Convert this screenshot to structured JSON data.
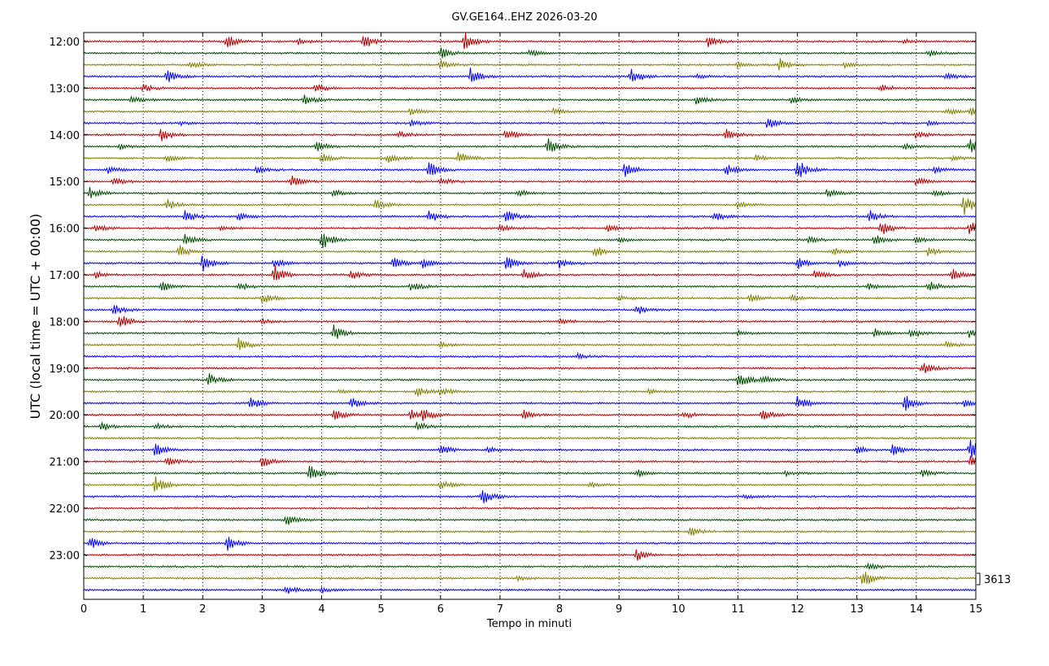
{
  "chart_data": {
    "type": "line",
    "title": "GV.GE164..EHZ 2026-03-20",
    "xlabel": "Tempo in minuti",
    "ylabel": "UTC (local time = UTC + 00:00)",
    "xlim": [
      0,
      15
    ],
    "x_ticks": [
      "0",
      "1",
      "2",
      "3",
      "4",
      "5",
      "6",
      "7",
      "8",
      "9",
      "10",
      "11",
      "12",
      "13",
      "14",
      "15"
    ],
    "y_ticks": [
      "12:00",
      "13:00",
      "14:00",
      "15:00",
      "16:00",
      "17:00",
      "18:00",
      "19:00",
      "20:00",
      "21:00",
      "22:00",
      "23:00"
    ],
    "grid_x": "dotted",
    "scale_label": "3613",
    "trace_colors": [
      "#b30000",
      "#004d00",
      "#7f7f00",
      "#0000ff"
    ],
    "trace_start": "12:00",
    "trace_interval_minutes": 15,
    "trace_count": 48,
    "events": [
      {
        "row": 0,
        "minute": 2.4,
        "amp": 0.6
      },
      {
        "row": 0,
        "minute": 3.6,
        "amp": 0.3
      },
      {
        "row": 0,
        "minute": 4.7,
        "amp": 0.7
      },
      {
        "row": 0,
        "minute": 6.4,
        "amp": 0.8
      },
      {
        "row": 0,
        "minute": 10.5,
        "amp": 0.5
      },
      {
        "row": 0,
        "minute": 13.8,
        "amp": 0.2
      },
      {
        "row": 1,
        "minute": 6.0,
        "amp": 0.5
      },
      {
        "row": 1,
        "minute": 7.5,
        "amp": 0.3
      },
      {
        "row": 1,
        "minute": 14.2,
        "amp": 0.3
      },
      {
        "row": 2,
        "minute": 1.8,
        "amp": 0.3
      },
      {
        "row": 2,
        "minute": 6.0,
        "amp": 0.4
      },
      {
        "row": 2,
        "minute": 11.0,
        "amp": 0.2
      },
      {
        "row": 2,
        "minute": 11.7,
        "amp": 0.6
      },
      {
        "row": 2,
        "minute": 12.8,
        "amp": 0.2
      },
      {
        "row": 3,
        "minute": 1.4,
        "amp": 0.6
      },
      {
        "row": 3,
        "minute": 6.5,
        "amp": 0.7
      },
      {
        "row": 3,
        "minute": 9.2,
        "amp": 0.8
      },
      {
        "row": 3,
        "minute": 10.3,
        "amp": 0.2
      },
      {
        "row": 3,
        "minute": 14.5,
        "amp": 0.3
      },
      {
        "row": 4,
        "minute": 1.0,
        "amp": 0.3
      },
      {
        "row": 4,
        "minute": 3.9,
        "amp": 0.4
      },
      {
        "row": 4,
        "minute": 13.4,
        "amp": 0.3
      },
      {
        "row": 5,
        "minute": 0.8,
        "amp": 0.3
      },
      {
        "row": 5,
        "minute": 3.7,
        "amp": 0.5
      },
      {
        "row": 5,
        "minute": 10.3,
        "amp": 0.4
      },
      {
        "row": 5,
        "minute": 11.9,
        "amp": 0.3
      },
      {
        "row": 6,
        "minute": 5.5,
        "amp": 0.3
      },
      {
        "row": 6,
        "minute": 7.9,
        "amp": 0.3
      },
      {
        "row": 6,
        "minute": 14.5,
        "amp": 0.3
      },
      {
        "row": 6,
        "minute": 14.9,
        "amp": 0.4
      },
      {
        "row": 7,
        "minute": 1.6,
        "amp": 0.2
      },
      {
        "row": 7,
        "minute": 5.5,
        "amp": 0.3
      },
      {
        "row": 7,
        "minute": 11.5,
        "amp": 0.5
      },
      {
        "row": 7,
        "minute": 14.2,
        "amp": 0.2
      },
      {
        "row": 8,
        "minute": 1.3,
        "amp": 0.6
      },
      {
        "row": 8,
        "minute": 5.3,
        "amp": 0.3
      },
      {
        "row": 8,
        "minute": 7.1,
        "amp": 0.5
      },
      {
        "row": 8,
        "minute": 10.8,
        "amp": 0.5
      },
      {
        "row": 8,
        "minute": 14.0,
        "amp": 0.3
      },
      {
        "row": 9,
        "minute": 0.6,
        "amp": 0.3
      },
      {
        "row": 9,
        "minute": 3.9,
        "amp": 0.5
      },
      {
        "row": 9,
        "minute": 7.8,
        "amp": 0.7
      },
      {
        "row": 9,
        "minute": 13.8,
        "amp": 0.3
      },
      {
        "row": 9,
        "minute": 14.9,
        "amp": 0.7
      },
      {
        "row": 10,
        "minute": 1.4,
        "amp": 0.3
      },
      {
        "row": 10,
        "minute": 4.0,
        "amp": 0.4
      },
      {
        "row": 10,
        "minute": 5.1,
        "amp": 0.5
      },
      {
        "row": 10,
        "minute": 6.3,
        "amp": 0.6
      },
      {
        "row": 10,
        "minute": 11.3,
        "amp": 0.3
      },
      {
        "row": 10,
        "minute": 14.6,
        "amp": 0.3
      },
      {
        "row": 11,
        "minute": 0.4,
        "amp": 0.3
      },
      {
        "row": 11,
        "minute": 2.9,
        "amp": 0.3
      },
      {
        "row": 11,
        "minute": 5.8,
        "amp": 0.7
      },
      {
        "row": 11,
        "minute": 9.1,
        "amp": 0.7
      },
      {
        "row": 11,
        "minute": 10.8,
        "amp": 0.5
      },
      {
        "row": 11,
        "minute": 12.0,
        "amp": 1.0
      },
      {
        "row": 11,
        "minute": 14.3,
        "amp": 0.3
      },
      {
        "row": 12,
        "minute": 0.5,
        "amp": 0.4
      },
      {
        "row": 12,
        "minute": 3.5,
        "amp": 0.5
      },
      {
        "row": 12,
        "minute": 6.0,
        "amp": 0.3
      },
      {
        "row": 12,
        "minute": 14.0,
        "amp": 0.4
      },
      {
        "row": 13,
        "minute": 0.1,
        "amp": 0.5
      },
      {
        "row": 13,
        "minute": 4.2,
        "amp": 0.3
      },
      {
        "row": 13,
        "minute": 7.3,
        "amp": 0.3
      },
      {
        "row": 13,
        "minute": 12.5,
        "amp": 0.4
      },
      {
        "row": 13,
        "minute": 14.3,
        "amp": 0.3
      },
      {
        "row": 14,
        "minute": 1.4,
        "amp": 0.5
      },
      {
        "row": 14,
        "minute": 4.9,
        "amp": 0.5
      },
      {
        "row": 14,
        "minute": 11.0,
        "amp": 0.3
      },
      {
        "row": 14,
        "minute": 14.8,
        "amp": 0.9
      },
      {
        "row": 15,
        "minute": 1.7,
        "amp": 0.6
      },
      {
        "row": 15,
        "minute": 2.6,
        "amp": 0.3
      },
      {
        "row": 15,
        "minute": 5.8,
        "amp": 0.6
      },
      {
        "row": 15,
        "minute": 7.1,
        "amp": 0.6
      },
      {
        "row": 15,
        "minute": 10.6,
        "amp": 0.4
      },
      {
        "row": 15,
        "minute": 13.2,
        "amp": 0.6
      },
      {
        "row": 16,
        "minute": 0.2,
        "amp": 0.3
      },
      {
        "row": 16,
        "minute": 2.3,
        "amp": 0.2
      },
      {
        "row": 16,
        "minute": 7.0,
        "amp": 0.3
      },
      {
        "row": 16,
        "minute": 8.8,
        "amp": 0.3
      },
      {
        "row": 16,
        "minute": 13.4,
        "amp": 0.7
      },
      {
        "row": 16,
        "minute": 14.9,
        "amp": 0.6
      },
      {
        "row": 17,
        "minute": 1.7,
        "amp": 0.5
      },
      {
        "row": 17,
        "minute": 4.0,
        "amp": 0.9
      },
      {
        "row": 17,
        "minute": 9.0,
        "amp": 0.2
      },
      {
        "row": 17,
        "minute": 12.2,
        "amp": 0.3
      },
      {
        "row": 17,
        "minute": 13.3,
        "amp": 0.5
      },
      {
        "row": 17,
        "minute": 14.0,
        "amp": 0.3
      },
      {
        "row": 18,
        "minute": 1.6,
        "amp": 0.6
      },
      {
        "row": 18,
        "minute": 8.6,
        "amp": 0.6
      },
      {
        "row": 18,
        "minute": 12.6,
        "amp": 0.4
      },
      {
        "row": 18,
        "minute": 14.2,
        "amp": 0.4
      },
      {
        "row": 19,
        "minute": 2.0,
        "amp": 0.8
      },
      {
        "row": 19,
        "minute": 3.2,
        "amp": 0.4
      },
      {
        "row": 19,
        "minute": 5.2,
        "amp": 0.6
      },
      {
        "row": 19,
        "minute": 5.7,
        "amp": 0.4
      },
      {
        "row": 19,
        "minute": 7.1,
        "amp": 0.6
      },
      {
        "row": 19,
        "minute": 8.0,
        "amp": 0.4
      },
      {
        "row": 19,
        "minute": 12.0,
        "amp": 0.5
      },
      {
        "row": 19,
        "minute": 12.7,
        "amp": 0.3
      },
      {
        "row": 20,
        "minute": 0.2,
        "amp": 0.3
      },
      {
        "row": 20,
        "minute": 3.2,
        "amp": 0.9
      },
      {
        "row": 20,
        "minute": 4.5,
        "amp": 0.4
      },
      {
        "row": 20,
        "minute": 7.4,
        "amp": 0.5
      },
      {
        "row": 20,
        "minute": 12.3,
        "amp": 0.5
      },
      {
        "row": 20,
        "minute": 14.6,
        "amp": 0.6
      },
      {
        "row": 21,
        "minute": 1.3,
        "amp": 0.5
      },
      {
        "row": 21,
        "minute": 2.6,
        "amp": 0.4
      },
      {
        "row": 21,
        "minute": 5.5,
        "amp": 0.4
      },
      {
        "row": 21,
        "minute": 13.2,
        "amp": 0.3
      },
      {
        "row": 21,
        "minute": 14.2,
        "amp": 0.5
      },
      {
        "row": 22,
        "minute": 3.0,
        "amp": 0.5
      },
      {
        "row": 22,
        "minute": 9.0,
        "amp": 0.2
      },
      {
        "row": 22,
        "minute": 11.2,
        "amp": 0.4
      },
      {
        "row": 22,
        "minute": 11.9,
        "amp": 0.3
      },
      {
        "row": 23,
        "minute": 0.5,
        "amp": 0.5
      },
      {
        "row": 23,
        "minute": 9.3,
        "amp": 0.4
      },
      {
        "row": 24,
        "minute": 0.6,
        "amp": 0.7
      },
      {
        "row": 24,
        "minute": 3.0,
        "amp": 0.2
      },
      {
        "row": 24,
        "minute": 8.0,
        "amp": 0.3
      },
      {
        "row": 25,
        "minute": 4.2,
        "amp": 0.8
      },
      {
        "row": 25,
        "minute": 11.0,
        "amp": 0.3
      },
      {
        "row": 25,
        "minute": 13.3,
        "amp": 0.4
      },
      {
        "row": 25,
        "minute": 13.9,
        "amp": 0.5
      },
      {
        "row": 25,
        "minute": 14.9,
        "amp": 0.5
      },
      {
        "row": 26,
        "minute": 2.6,
        "amp": 0.6
      },
      {
        "row": 26,
        "minute": 6.0,
        "amp": 0.2
      },
      {
        "row": 26,
        "minute": 14.5,
        "amp": 0.3
      },
      {
        "row": 27,
        "minute": 8.3,
        "amp": 0.2
      },
      {
        "row": 28,
        "minute": 14.1,
        "amp": 0.6
      },
      {
        "row": 29,
        "minute": 2.1,
        "amp": 0.6
      },
      {
        "row": 29,
        "minute": 11.0,
        "amp": 0.9
      },
      {
        "row": 29,
        "minute": 11.4,
        "amp": 0.4
      },
      {
        "row": 30,
        "minute": 4.3,
        "amp": 0.2
      },
      {
        "row": 30,
        "minute": 5.6,
        "amp": 0.4
      },
      {
        "row": 30,
        "minute": 6.0,
        "amp": 0.4
      },
      {
        "row": 30,
        "minute": 9.5,
        "amp": 0.2
      },
      {
        "row": 31,
        "minute": 2.8,
        "amp": 0.6
      },
      {
        "row": 31,
        "minute": 4.5,
        "amp": 0.5
      },
      {
        "row": 31,
        "minute": 12.0,
        "amp": 0.6
      },
      {
        "row": 31,
        "minute": 13.8,
        "amp": 0.8
      },
      {
        "row": 31,
        "minute": 14.8,
        "amp": 0.3
      },
      {
        "row": 32,
        "minute": 4.2,
        "amp": 0.5
      },
      {
        "row": 32,
        "minute": 5.5,
        "amp": 0.5
      },
      {
        "row": 32,
        "minute": 5.7,
        "amp": 0.5
      },
      {
        "row": 32,
        "minute": 7.4,
        "amp": 0.4
      },
      {
        "row": 32,
        "minute": 10.1,
        "amp": 0.3
      },
      {
        "row": 32,
        "minute": 11.4,
        "amp": 0.5
      },
      {
        "row": 33,
        "minute": 0.3,
        "amp": 0.4
      },
      {
        "row": 33,
        "minute": 1.2,
        "amp": 0.3
      },
      {
        "row": 33,
        "minute": 5.6,
        "amp": 0.4
      },
      {
        "row": 35,
        "minute": 1.2,
        "amp": 0.6
      },
      {
        "row": 35,
        "minute": 6.0,
        "amp": 0.5
      },
      {
        "row": 35,
        "minute": 6.8,
        "amp": 0.3
      },
      {
        "row": 35,
        "minute": 13.0,
        "amp": 0.4
      },
      {
        "row": 35,
        "minute": 13.6,
        "amp": 0.5
      },
      {
        "row": 35,
        "minute": 14.9,
        "amp": 1.0
      },
      {
        "row": 36,
        "minute": 1.4,
        "amp": 0.4
      },
      {
        "row": 36,
        "minute": 3.0,
        "amp": 0.5
      },
      {
        "row": 36,
        "minute": 14.9,
        "amp": 0.5
      },
      {
        "row": 37,
        "minute": 3.8,
        "amp": 0.8
      },
      {
        "row": 37,
        "minute": 9.3,
        "amp": 0.4
      },
      {
        "row": 37,
        "minute": 11.8,
        "amp": 0.2
      },
      {
        "row": 37,
        "minute": 14.1,
        "amp": 0.3
      },
      {
        "row": 38,
        "minute": 1.2,
        "amp": 0.8
      },
      {
        "row": 38,
        "minute": 6.0,
        "amp": 0.4
      },
      {
        "row": 38,
        "minute": 8.5,
        "amp": 0.2
      },
      {
        "row": 39,
        "minute": 6.7,
        "amp": 0.7
      },
      {
        "row": 39,
        "minute": 11.1,
        "amp": 0.2
      },
      {
        "row": 41,
        "minute": 3.4,
        "amp": 0.5
      },
      {
        "row": 42,
        "minute": 10.2,
        "amp": 0.4
      },
      {
        "row": 43,
        "minute": 0.1,
        "amp": 0.6
      },
      {
        "row": 43,
        "minute": 2.4,
        "amp": 0.7
      },
      {
        "row": 44,
        "minute": 9.3,
        "amp": 0.5
      },
      {
        "row": 45,
        "minute": 13.2,
        "amp": 0.3
      },
      {
        "row": 46,
        "minute": 13.1,
        "amp": 0.9
      },
      {
        "row": 46,
        "minute": 7.3,
        "amp": 0.2
      },
      {
        "row": 47,
        "minute": 3.4,
        "amp": 0.4
      },
      {
        "row": 47,
        "minute": 4.0,
        "amp": 0.2
      }
    ]
  }
}
